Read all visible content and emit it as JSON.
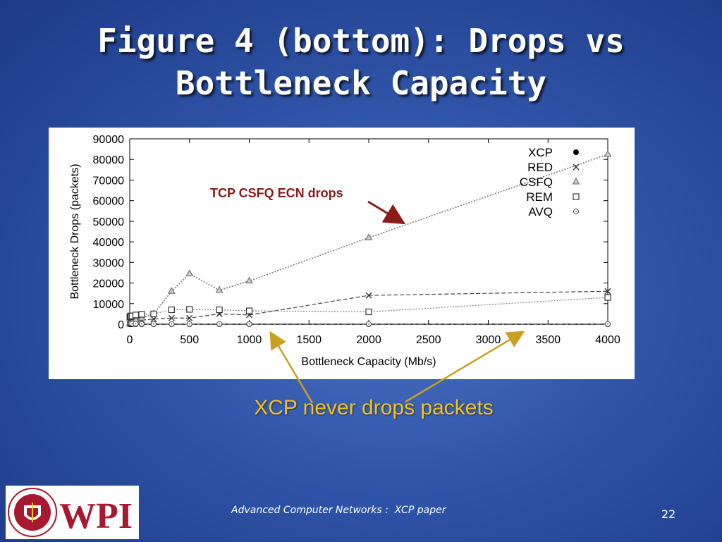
{
  "slide": {
    "title_line1": "Figure 4 (bottom): Drops vs",
    "title_line2": "Bottleneck Capacity",
    "caption": "XCP never drops packets",
    "callout_label": "TCP CSFQ ECN drops",
    "footer": "Advanced Computer Networks :  XCP paper",
    "page_number": "22",
    "logo_text": "WPI",
    "logo_seal_text": "WORCESTER POLYTECHNIC INSTITUTE 1865",
    "colors": {
      "title": "#ffffff",
      "caption": "#f2c21a",
      "callout": "#8b1a1a",
      "arrow_gold": "#c9a020",
      "logo_red": "#a6192e"
    }
  },
  "chart_data": {
    "type": "scatter",
    "xlabel": "Bottleneck Capacity (Mb/s)",
    "ylabel": "Bottleneck Drops (packets)",
    "xlim": [
      0,
      4000
    ],
    "ylim": [
      0,
      90000
    ],
    "xticks": [
      0,
      500,
      1000,
      1500,
      2000,
      2500,
      3000,
      3500,
      4000
    ],
    "yticks": [
      0,
      10000,
      20000,
      30000,
      40000,
      50000,
      60000,
      70000,
      80000,
      90000
    ],
    "grid": false,
    "legend_position": "top-right",
    "series": [
      {
        "name": "XCP",
        "marker": "filled-circle",
        "x": [
          1,
          5,
          10,
          20,
          50,
          100,
          200,
          350,
          500,
          750,
          1000,
          2000,
          4000
        ],
        "y": [
          0,
          0,
          0,
          0,
          0,
          0,
          0,
          0,
          0,
          0,
          0,
          0,
          0
        ]
      },
      {
        "name": "RED",
        "marker": "x",
        "x": [
          1,
          5,
          10,
          20,
          50,
          100,
          200,
          350,
          500,
          750,
          1000,
          2000,
          4000
        ],
        "y": [
          200,
          400,
          700,
          1000,
          1500,
          2000,
          2500,
          3000,
          3000,
          5000,
          4500,
          14000,
          16000
        ]
      },
      {
        "name": "CSFQ",
        "marker": "triangle",
        "x": [
          1,
          5,
          10,
          20,
          50,
          100,
          200,
          350,
          500,
          750,
          1000,
          2000,
          4000
        ],
        "y": [
          500,
          800,
          1200,
          1500,
          2000,
          3000,
          5000,
          16000,
          24500,
          16500,
          21000,
          42000,
          82500
        ]
      },
      {
        "name": "REM",
        "marker": "open-square",
        "x": [
          1,
          5,
          10,
          20,
          50,
          100,
          200,
          350,
          500,
          750,
          1000,
          2000,
          4000
        ],
        "y": [
          3500,
          4000,
          3800,
          4000,
          4500,
          4800,
          5000,
          7000,
          7200,
          7000,
          6500,
          6000,
          13000
        ]
      },
      {
        "name": "AVQ",
        "marker": "open-circle-dot",
        "x": [
          1,
          5,
          10,
          20,
          50,
          100,
          200,
          350,
          500,
          750,
          1000,
          2000,
          4000
        ],
        "y": [
          600,
          500,
          400,
          300,
          200,
          150,
          100,
          100,
          100,
          100,
          100,
          100,
          100
        ]
      }
    ]
  }
}
